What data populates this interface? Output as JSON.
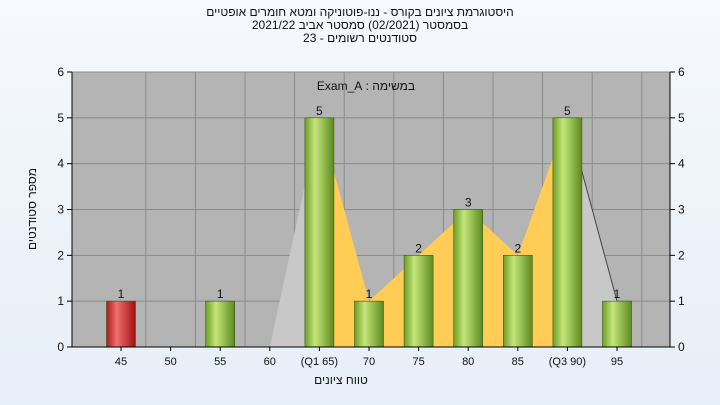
{
  "chart_data": {
    "type": "bar",
    "title_lines": [
      "היסטוגרמת ציונים בקורס - ננו-פוטוניקה ומטא חומרים אופטיים",
      "בסמסטר  (02/2021)  סמסטר אביב 2021/22",
      "סטודנטים רשומים - 23"
    ],
    "annotation": "במשימה : Exam_A",
    "xlabel": "טווח ציונים",
    "ylabel": "מספר סטודנטים",
    "ylim": [
      0,
      6
    ],
    "yticks": [
      "0",
      "1",
      "2",
      "3",
      "4",
      "5",
      "6"
    ],
    "categories": [
      "45",
      "50",
      "55",
      "60",
      "(Q1 65)",
      "70",
      "75",
      "80",
      "85",
      "(Q3 90)",
      "95"
    ],
    "values": [
      1,
      0,
      1,
      0,
      5,
      1,
      2,
      3,
      2,
      5,
      1
    ],
    "bar_colors": [
      "#e23b3b",
      "#8dc43f",
      "#8dc43f",
      "#8dc43f",
      "#8dc43f",
      "#8dc43f",
      "#8dc43f",
      "#8dc43f",
      "#8dc43f",
      "#8dc43f",
      "#8dc43f"
    ],
    "iqr_fill": "#ffcc55",
    "plot_background": "#b4b4b4",
    "grid": true
  }
}
